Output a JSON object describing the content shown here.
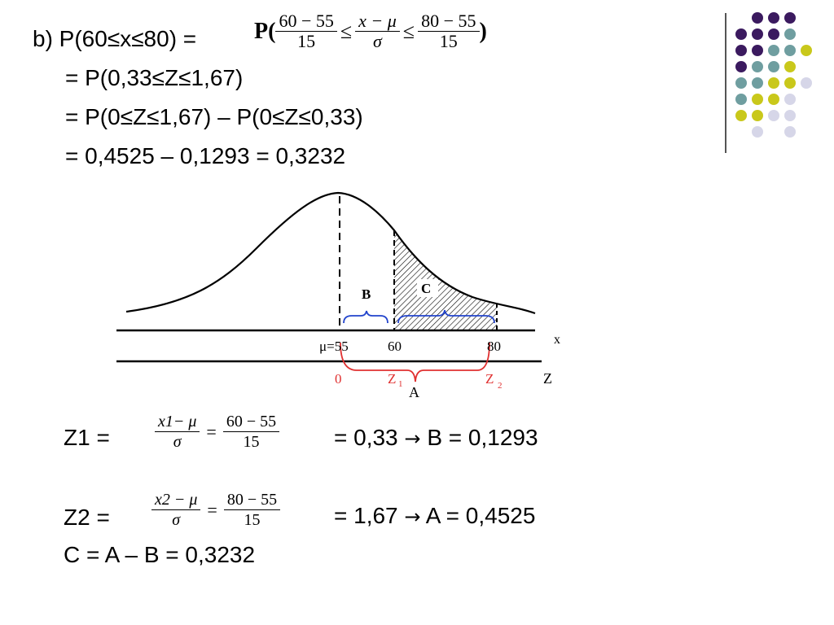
{
  "header": {
    "line1_prefix": "b) P(60≤x≤80) =",
    "line1_formula": {
      "P_open": "P(",
      "frac1_num": "60 − 55",
      "frac1_den": "15",
      "le1": "≤",
      "frac2_num": "x − μ",
      "frac2_den": "σ",
      "le2": "≤",
      "frac3_num": "80 − 55",
      "frac3_den": "15",
      "P_close": ")"
    },
    "line2": "= P(0,33≤Z≤1,67)",
    "line3": "= P(0≤Z≤1,67) – P(0≤Z≤0,33)",
    "line4": "= 0,4525 – 0,1293 = 0,3232"
  },
  "diagram": {
    "label_B": "B",
    "label_C": "C",
    "x_axis_label": "x",
    "z_axis_label": "Z",
    "mu_label": "μ=55",
    "x_tick_60": "60",
    "x_tick_80": "80",
    "z_tick_0": "0",
    "z1_label": "Z",
    "z1_sub": "1",
    "z2_label": "Z",
    "z2_sub": "2",
    "label_A": "A"
  },
  "z1_row": {
    "prefix": "Z1 =",
    "frac1_num": "x1− μ",
    "frac1_den": "σ",
    "eq": "=",
    "frac2_num": "60 − 55",
    "frac2_den": "15",
    "result_pre": "= 0,33",
    "result_post": "B = 0,1293"
  },
  "z2_row": {
    "prefix": "Z2 =",
    "frac1_num": "x2 − μ",
    "frac1_den": "σ",
    "eq": "=",
    "frac2_num": "80 − 55",
    "frac2_den": "15",
    "result_pre": "= 1,67",
    "result_post": "A = 0,4525"
  },
  "c_row": "C = A – B = 0,3232",
  "icons": {
    "arrow": "right-arrow-icon"
  },
  "colors": {
    "purple": "#3b1a5f",
    "teal": "#6f9ea0",
    "yellow": "#c9c81b",
    "lavender": "#d6d6e8",
    "blue": "#2244cc",
    "red": "#e03030"
  }
}
